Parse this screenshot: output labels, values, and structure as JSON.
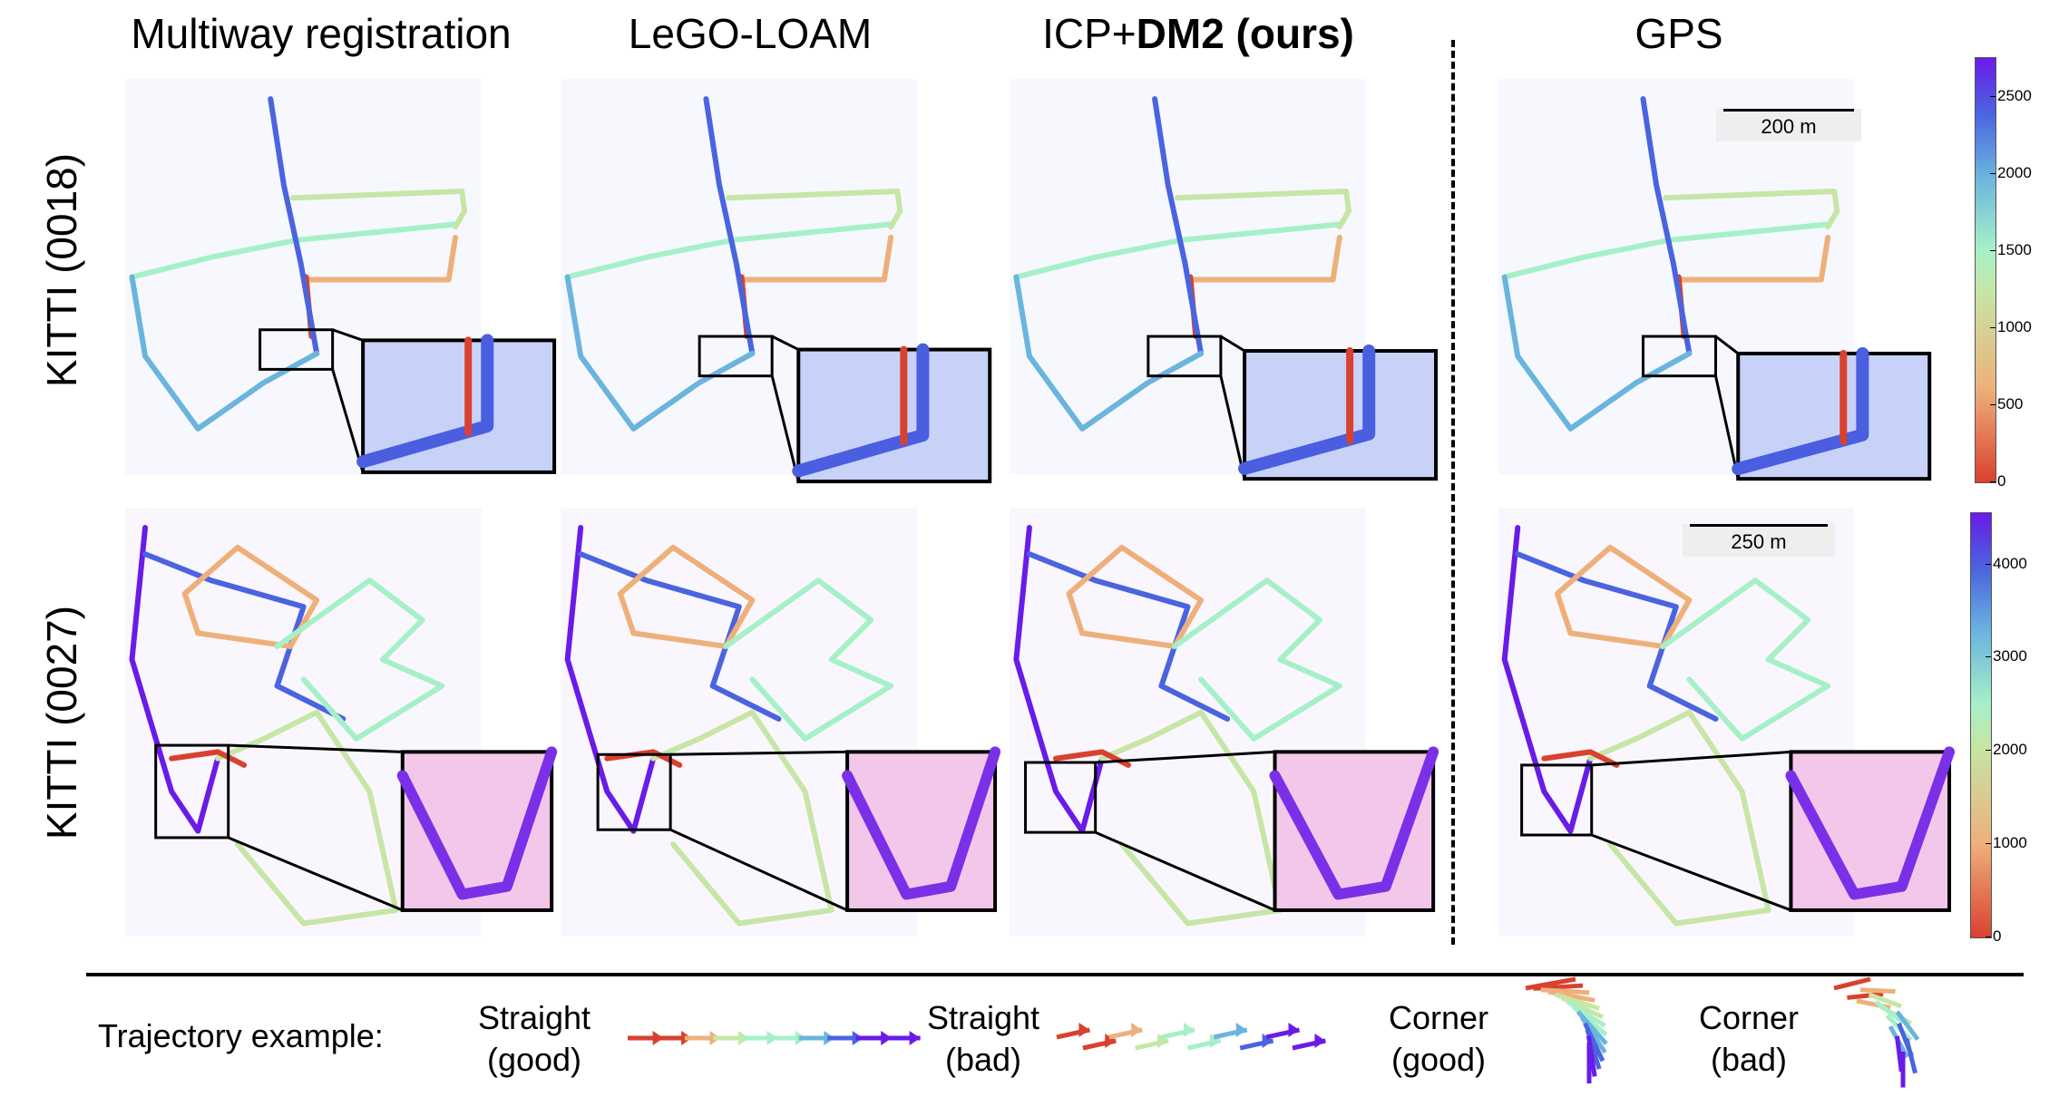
{
  "columns": [
    {
      "title": "Multiway registration"
    },
    {
      "title": "LeGO-LOAM"
    },
    {
      "title_prefix": "ICP+",
      "title_bold": "DM2 (ours)"
    },
    {
      "title": "GPS"
    }
  ],
  "rows": [
    {
      "label": "KITTI (0018)"
    },
    {
      "label": "KITTI (0027)"
    }
  ],
  "scale_bars": [
    "200 m",
    "250 m"
  ],
  "colorbars": [
    {
      "ticks": [
        "0",
        "500",
        "1000",
        "1500",
        "2000",
        "2500"
      ],
      "max": 2750
    },
    {
      "ticks": [
        "0",
        "1000",
        "2000",
        "3000",
        "4000"
      ],
      "max": 4550
    }
  ],
  "colormap": [
    "#d9412f",
    "#eeb07a",
    "#c6e6a6",
    "#a6f0c8",
    "#6ab4de",
    "#4a64e0",
    "#6a1be8"
  ],
  "legend": {
    "heading": "Trajectory example:",
    "examples": [
      {
        "line1": "Straight",
        "line2": "(good)"
      },
      {
        "line1": "Straight",
        "line2": "(bad)"
      },
      {
        "line1": "Corner",
        "line2": "(good)"
      },
      {
        "line1": "Corner",
        "line2": "(bad)"
      }
    ]
  }
}
